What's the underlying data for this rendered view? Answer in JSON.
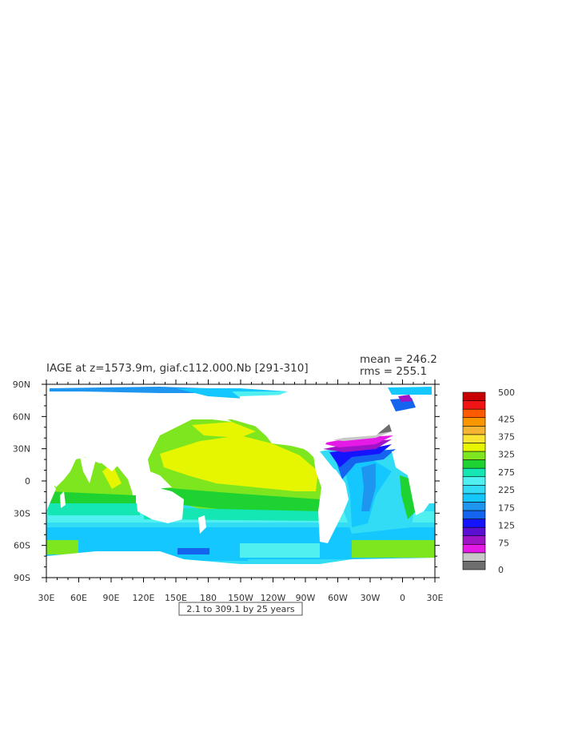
{
  "title": "IAGE at z=1573.9m, giaf.c112.000.Nb [291-310]",
  "stats": {
    "mean_label": "mean = 246.2",
    "rms_label": "rms = 255.1"
  },
  "footer": "2.1 to 309.1 by 25 years",
  "axes": {
    "x_ticks": [
      "30E",
      "60E",
      "90E",
      "120E",
      "150E",
      "180",
      "150W",
      "120W",
      "90W",
      "60W",
      "30W",
      "0",
      "30E"
    ],
    "y_ticks": [
      "90N",
      "60N",
      "30N",
      "0",
      "30S",
      "60S",
      "90S"
    ],
    "x_range": [
      30,
      390
    ],
    "y_range": [
      -90,
      90
    ]
  },
  "colorbar": {
    "levels": [
      0,
      25,
      50,
      75,
      100,
      125,
      150,
      175,
      200,
      225,
      250,
      275,
      300,
      325,
      350,
      375,
      400,
      425,
      450,
      475,
      500
    ],
    "colors": [
      "#6e6e6e",
      "#c8c8c8",
      "#e61ae6",
      "#a014c8",
      "#5a0fd2",
      "#1414ff",
      "#1464f0",
      "#1e96f0",
      "#14c8ff",
      "#32dcf5",
      "#50f0f0",
      "#14e6b4",
      "#1ed232",
      "#7de61e",
      "#e6f500",
      "#fae632",
      "#f5b432",
      "#fa9600",
      "#ff5a00",
      "#f01414",
      "#c80000"
    ],
    "tick_labels": [
      "500",
      "425",
      "375",
      "325",
      "275",
      "225",
      "175",
      "125",
      "75",
      "0"
    ],
    "tick_values": [
      500,
      425,
      375,
      325,
      275,
      225,
      175,
      125,
      75,
      0
    ]
  },
  "colors": {
    "land": "#ffffff",
    "frame": "#000000"
  }
}
